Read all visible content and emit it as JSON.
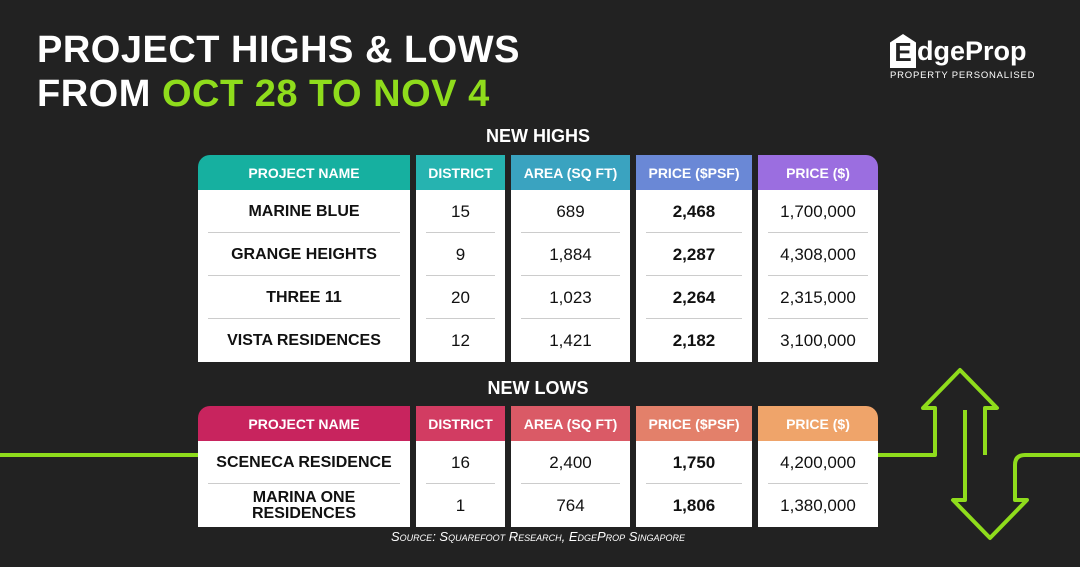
{
  "title": {
    "line1": "PROJECT HIGHS & LOWS",
    "line2_prefix": "FROM ",
    "line2_highlight": "OCT 28 TO NOV 4"
  },
  "logo": {
    "brand": "EdgeProp",
    "tagline": "PROPERTY PERSONALISED"
  },
  "colors": {
    "accent_green": "#8fdc1c",
    "highs_header": [
      "#16b0a0",
      "#9b6ee0"
    ],
    "lows_header": [
      "#c8245e",
      "#efa46a"
    ]
  },
  "columns": [
    "PROJECT NAME",
    "DISTRICT",
    "AREA (SQ FT)",
    "PRICE ($PSF)",
    "PRICE ($)"
  ],
  "highs": {
    "heading": "NEW HIGHS",
    "rows": [
      [
        "MARINE BLUE",
        "15",
        "689",
        "2,468",
        "1,700,000"
      ],
      [
        "GRANGE HEIGHTS",
        "9",
        "1,884",
        "2,287",
        "4,308,000"
      ],
      [
        "THREE 11",
        "20",
        "1,023",
        "2,264",
        "2,315,000"
      ],
      [
        "VISTA RESIDENCES",
        "12",
        "1,421",
        "2,182",
        "3,100,000"
      ]
    ]
  },
  "lows": {
    "heading": "NEW LOWS",
    "rows": [
      [
        "SCENECA RESIDENCE",
        "16",
        "2,400",
        "1,750",
        "4,200,000"
      ],
      [
        "MARINA ONE RESIDENCES",
        "1",
        "764",
        "1,806",
        "1,380,000"
      ]
    ]
  },
  "source": "Source: Squarefoot Research, EdgeProp Singapore"
}
